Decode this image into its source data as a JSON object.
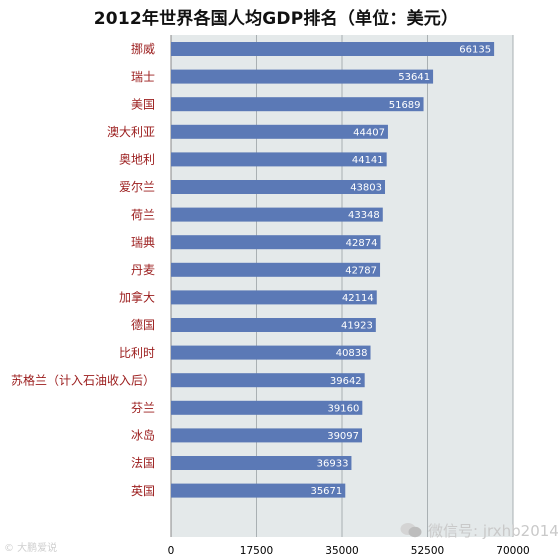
{
  "chart_data": {
    "type": "bar",
    "orientation": "horizontal",
    "title": "2012年世界各国人均GDP排名（单位：美元）",
    "categories": [
      "挪威",
      "瑞士",
      "美国",
      "澳大利亚",
      "奥地利",
      "爱尔兰",
      "荷兰",
      "瑞典",
      "丹麦",
      "加拿大",
      "德国",
      "比利时",
      "苏格兰（计入石油收入后）",
      "芬兰",
      "冰岛",
      "法国",
      "英国"
    ],
    "values": [
      66135,
      53641,
      51689,
      44407,
      44141,
      43803,
      43348,
      42874,
      42787,
      42114,
      41923,
      40838,
      39642,
      39160,
      39097,
      36933,
      35671
    ],
    "xlim": [
      0,
      70000
    ],
    "xticks": [
      0,
      17500,
      35000,
      52500,
      70000
    ],
    "grid": true,
    "bar_color": "#5b79b6",
    "plot_background": "#e4e9ea",
    "category_color": "#9b1c1c"
  },
  "watermarks": {
    "right": "微信号: jrxhb2014",
    "left": "© 大鹏爱说"
  }
}
